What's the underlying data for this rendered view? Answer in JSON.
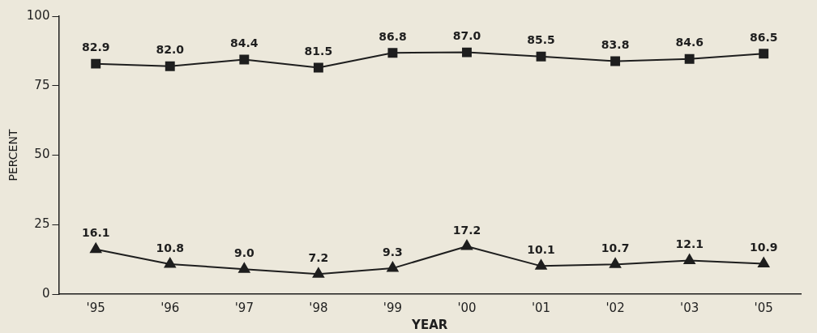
{
  "chart_data": {
    "type": "line",
    "xlabel": "YEAR",
    "ylabel": "PERCENT",
    "categories": [
      "'95",
      "'96",
      "'97",
      "'98",
      "'99",
      "'00",
      "'01",
      "'02",
      "'03",
      "'05"
    ],
    "series": [
      {
        "color": "#1e1e1e",
        "marker": "square",
        "values": [
          82.9,
          82.0,
          84.4,
          81.5,
          86.8,
          87.0,
          85.5,
          83.8,
          84.6,
          86.5
        ],
        "value_labels": [
          "82.9",
          "82.0",
          "84.4",
          "81.5",
          "86.8",
          "87.0",
          "85.5",
          "83.8",
          "84.6",
          "86.5"
        ]
      },
      {
        "color": "#1e1e1e",
        "marker": "triangle",
        "values": [
          16.1,
          10.8,
          9.0,
          7.2,
          9.3,
          17.2,
          10.1,
          10.7,
          12.1,
          10.9
        ],
        "value_labels": [
          "16.1",
          "10.8",
          "9.0",
          "7.2",
          "9.3",
          "17.2",
          "10.1",
          "10.7",
          "12.1",
          "10.9"
        ]
      }
    ],
    "ylim": [
      0,
      100
    ],
    "yticks": [
      0,
      25,
      50,
      75,
      100
    ],
    "grid": false,
    "legend": false,
    "line_style": "solid"
  }
}
